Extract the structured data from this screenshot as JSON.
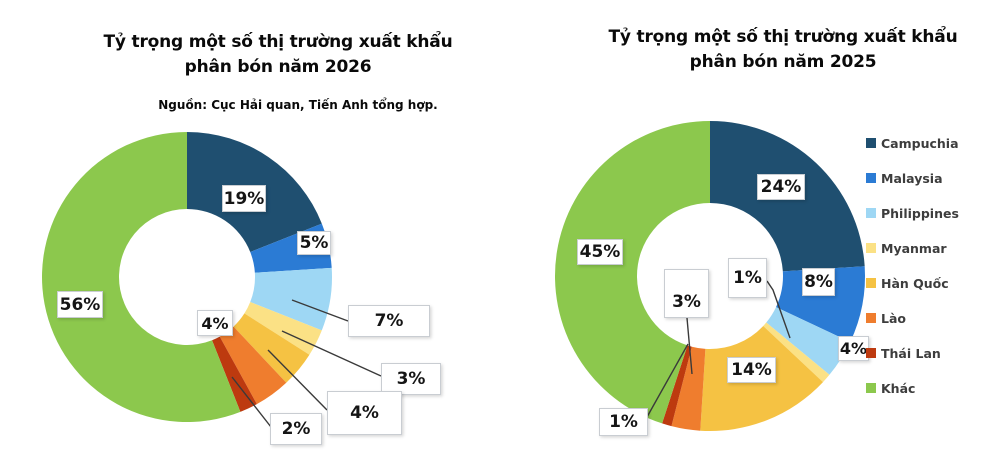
{
  "left_panel": {
    "title_line1": "Tỷ trọng một số thị trường xuất khẩu",
    "title_line2": "phân bón năm 2026",
    "source": "Nguồn: Cục Hải quan, Tiến Anh tổng hợp."
  },
  "right_panel": {
    "title_line1": "Tỷ trọng một số thị trường xuất khẩu",
    "title_line2": "phân bón năm 2025"
  },
  "chart_data": [
    {
      "type": "pie",
      "subtype": "donut",
      "title": "Tỷ trọng một số thị trường xuất khẩu phân bón năm 2026",
      "source": "Nguồn: Cục Hải quan, Tiến Anh tổng hợp.",
      "unit": "%",
      "start_angle": 0,
      "direction": "clockwise",
      "legend_position": "none",
      "categories": [
        "Campuchia",
        "Malaysia",
        "Philippines",
        "Myanmar",
        "Hàn Quốc",
        "Lào",
        "Thái Lan",
        "Khác"
      ],
      "values": [
        19,
        5,
        7,
        3,
        4,
        4,
        2,
        56
      ],
      "display_labels": [
        "19%",
        "5%",
        "7%",
        "3%",
        "4%",
        "4%",
        "2%",
        "56%"
      ],
      "colors": [
        "#1f4f70",
        "#2b7bd4",
        "#9ed7f4",
        "#fbe185",
        "#f5c243",
        "#ef7d2e",
        "#bd3a0f",
        "#8cc84d"
      ]
    },
    {
      "type": "pie",
      "subtype": "donut",
      "title": "Tỷ trọng một số thị trường xuất khẩu phân bón năm 2025",
      "unit": "%",
      "start_angle": 0,
      "direction": "clockwise",
      "legend_position": "right",
      "categories": [
        "Campuchia",
        "Malaysia",
        "Philippines",
        "Myanmar",
        "Hàn Quốc",
        "Lào",
        "Thái Lan",
        "Khác"
      ],
      "values": [
        24,
        8,
        4,
        1,
        14,
        3,
        1,
        45
      ],
      "display_labels": [
        "24%",
        "8%",
        "4%",
        "1%",
        "14%",
        "3%",
        "1%",
        "45%"
      ],
      "colors": [
        "#1f4f70",
        "#2b7bd4",
        "#9ed7f4",
        "#fbe185",
        "#f5c243",
        "#ef7d2e",
        "#bd3a0f",
        "#8cc84d"
      ]
    }
  ]
}
